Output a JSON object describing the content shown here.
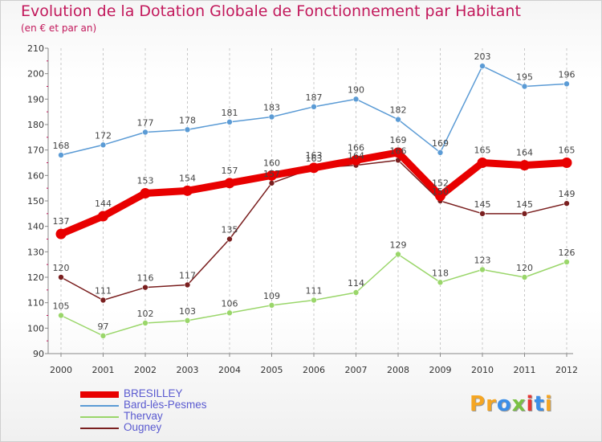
{
  "header": {
    "title": "Evolution de la Dotation Globale de Fonctionnement par Habitant",
    "subtitle": "(en € et par an)"
  },
  "logo": {
    "letters": [
      "P",
      "r",
      "o",
      "x",
      "i",
      "t",
      "i"
    ],
    "colors": [
      "#f5a623",
      "#f5a623",
      "#3b8ee8",
      "#7ac143",
      "#e53935",
      "#3b8ee8",
      "#f5a623"
    ]
  },
  "chart_data": {
    "type": "line",
    "title": "Evolution de la Dotation Globale de Fonctionnement par Habitant",
    "subtitle": "(en € et par an)",
    "xlabel": "",
    "ylabel": "",
    "x": [
      "2000",
      "2001",
      "2002",
      "2003",
      "2004",
      "2005",
      "2006",
      "2007",
      "2008",
      "2009",
      "2010",
      "2011",
      "2012"
    ],
    "ylim": [
      90,
      210
    ],
    "yticks": [
      90,
      100,
      110,
      120,
      130,
      140,
      150,
      160,
      170,
      180,
      190,
      200,
      210
    ],
    "grid": "vertical",
    "legend_position": "bottom-left",
    "series": [
      {
        "name": "BRESILLEY",
        "color": "#e80000",
        "emphasis": true,
        "values": [
          137,
          144,
          153,
          154,
          157,
          160,
          163,
          166,
          169,
          152,
          165,
          164,
          165
        ]
      },
      {
        "name": "Bard-lès-Pesmes",
        "color": "#5b9bd5",
        "emphasis": false,
        "values": [
          168,
          172,
          177,
          178,
          181,
          183,
          187,
          190,
          182,
          169,
          203,
          195,
          196
        ]
      },
      {
        "name": "Thervay",
        "color": "#9ad66a",
        "emphasis": false,
        "values": [
          105,
          97,
          102,
          103,
          106,
          109,
          111,
          114,
          129,
          118,
          123,
          120,
          126
        ]
      },
      {
        "name": "Ougney",
        "color": "#7a1f1f",
        "emphasis": false,
        "values": [
          120,
          111,
          116,
          117,
          135,
          157,
          163,
          164,
          166,
          150,
          145,
          145,
          149
        ]
      }
    ]
  }
}
